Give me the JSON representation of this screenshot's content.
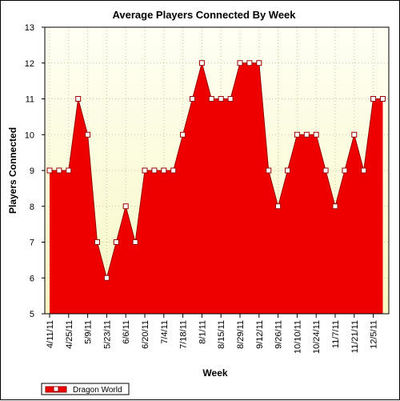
{
  "chart_data": {
    "type": "area",
    "title": "Average Players Connected By Week",
    "xlabel": "Week",
    "ylabel": "Players Connected",
    "ylim": [
      5,
      13
    ],
    "yticks": [
      5,
      6,
      7,
      8,
      9,
      10,
      11,
      12,
      13
    ],
    "grid": true,
    "legend_position": "bottom-left",
    "colors": {
      "fill": "#ee0000",
      "line": "#990000",
      "plot_bg_top": "#fffff4",
      "plot_bg_bottom": "#f7f7c4",
      "marker_fill": "#ffffff"
    },
    "tick_labels": [
      "4/11/11",
      "4/25/11",
      "5/9/11",
      "5/23/11",
      "6/6/11",
      "6/20/11",
      "7/4/11",
      "7/18/11",
      "8/1/11",
      "8/15/11",
      "8/29/11",
      "9/12/11",
      "9/26/11",
      "10/10/11",
      "10/24/11",
      "11/7/11",
      "11/21/11",
      "12/5/11"
    ],
    "series": [
      {
        "name": "Dragon World",
        "values": [
          9,
          9,
          9,
          11,
          10,
          7,
          6,
          7,
          8,
          7,
          9,
          9,
          9,
          9,
          10,
          11,
          12,
          11,
          11,
          11,
          12,
          12,
          12,
          9,
          8,
          9,
          10,
          10,
          10,
          9,
          8,
          9,
          10,
          9,
          11,
          11
        ]
      }
    ]
  }
}
